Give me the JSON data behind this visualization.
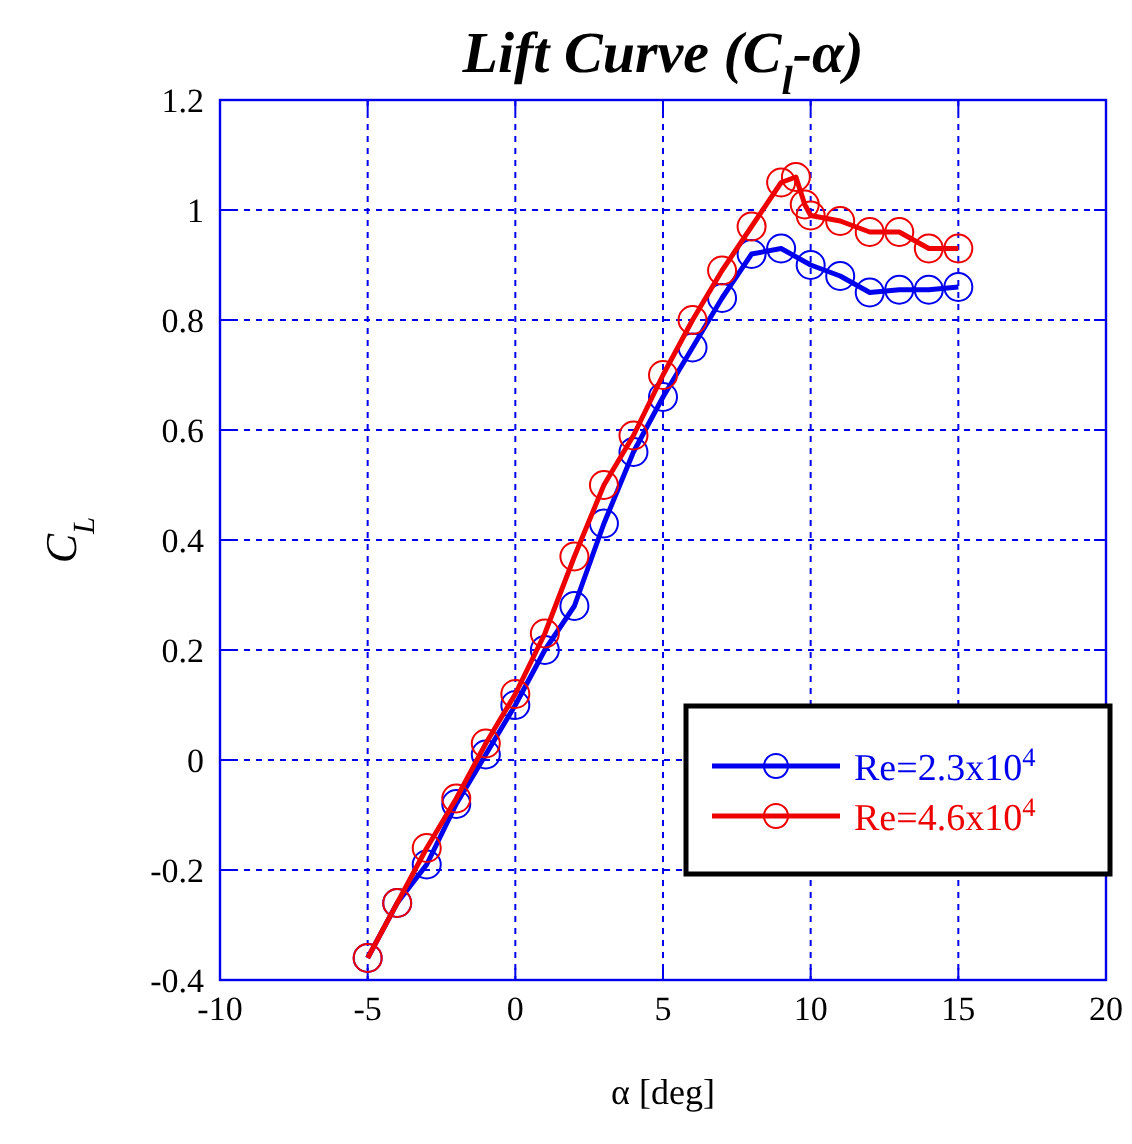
{
  "chart_data": {
    "type": "line",
    "title": "Lift Curve (C$_{l}$-α)",
    "xlabel": "α [deg]",
    "ylabel": "C$_{L}$",
    "xlim": [
      -10,
      20
    ],
    "xticks": [
      -10,
      -5,
      0,
      5,
      10,
      15,
      20
    ],
    "ylim": [
      -0.4,
      1.2
    ],
    "yticks": [
      -0.4,
      -0.2,
      0,
      0.2,
      0.4,
      0.6,
      0.8,
      1,
      1.2
    ],
    "grid": true,
    "legend": "bottom right",
    "marker": "circle",
    "line_style": "solid",
    "series": [
      {
        "name": "Re=2.3x10$^{4}$",
        "color": "#0000ee",
        "x": [
          -5,
          -4,
          -3,
          -2,
          -1,
          0,
          1,
          2,
          3,
          4,
          5,
          6,
          7,
          8,
          9,
          10,
          11,
          12,
          13,
          14,
          15
        ],
        "values": [
          -0.36,
          -0.26,
          -0.19,
          -0.08,
          0.01,
          0.1,
          0.2,
          0.28,
          0.43,
          0.56,
          0.66,
          0.75,
          0.84,
          0.92,
          0.93,
          0.9,
          0.88,
          0.85,
          0.855,
          0.855,
          0.86
        ]
      },
      {
        "name": "Re=4.6x10$^{4}$",
        "color": "#ee0000",
        "x": [
          -5,
          -4,
          -3,
          -2,
          -1,
          0,
          1,
          2,
          3,
          4,
          5,
          6,
          7,
          8,
          9,
          9.5,
          9.8,
          10,
          11,
          12,
          13,
          14,
          15
        ],
        "values": [
          -0.36,
          -0.26,
          -0.16,
          -0.07,
          0.03,
          0.12,
          0.23,
          0.37,
          0.5,
          0.59,
          0.7,
          0.8,
          0.89,
          0.97,
          1.05,
          1.06,
          1.01,
          0.99,
          0.98,
          0.96,
          0.96,
          0.93,
          0.93
        ]
      }
    ]
  }
}
